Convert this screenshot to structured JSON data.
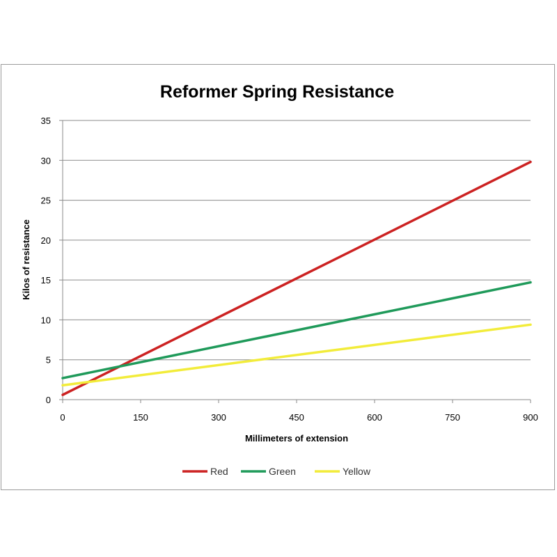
{
  "chart_data": {
    "type": "line",
    "title": "Reformer Spring Resistance",
    "xlabel": "Millimeters of extension",
    "ylabel": "Kilos of resistance",
    "xlim": [
      0,
      900
    ],
    "ylim": [
      0,
      35
    ],
    "x_ticks": [
      "0",
      "150",
      "300",
      "450",
      "600",
      "750",
      "900"
    ],
    "y_ticks": [
      "0",
      "5",
      "10",
      "15",
      "20",
      "25",
      "30",
      "35"
    ],
    "grid": "horizontal",
    "legend_position": "bottom",
    "series": [
      {
        "name": "Red",
        "color": "#cc2222",
        "x": [
          0,
          900
        ],
        "y": [
          0.6,
          29.8
        ]
      },
      {
        "name": "Green",
        "color": "#1f9a5a",
        "x": [
          0,
          900
        ],
        "y": [
          2.7,
          14.7
        ]
      },
      {
        "name": "Yellow",
        "color": "#f2ec3a",
        "x": [
          0,
          900
        ],
        "y": [
          1.8,
          9.4
        ]
      }
    ]
  }
}
